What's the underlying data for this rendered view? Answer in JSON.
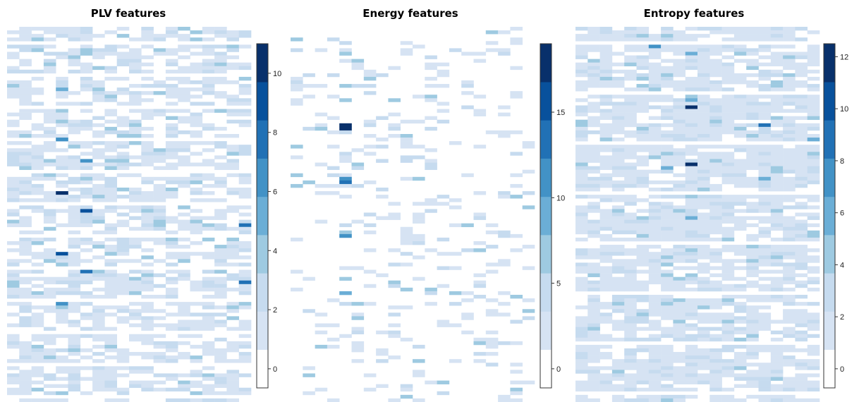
{
  "palette": [
    "#ffffff",
    "#d6e3f3",
    "#c6dbef",
    "#9ecae1",
    "#6baed6",
    "#4292c6",
    "#2171b5",
    "#08519c",
    "#08306b"
  ],
  "chart_data": [
    {
      "type": "heatmap",
      "title": "PLV features",
      "rows": 105,
      "cols": 20,
      "zlim": [
        0,
        11
      ],
      "colorbar_ticks": [
        "0",
        "2",
        "4",
        "6",
        "8",
        "10"
      ],
      "colorbar_values": [
        0,
        2,
        4,
        6,
        8,
        10
      ],
      "hotspots": [
        {
          "row": 46,
          "col": 4,
          "value": 10.5
        },
        {
          "row": 51,
          "col": 6,
          "value": 9.5
        },
        {
          "row": 63,
          "col": 4,
          "value": 10.0
        },
        {
          "row": 68,
          "col": 6,
          "value": 8.5
        },
        {
          "row": 71,
          "col": 19,
          "value": 8.5
        },
        {
          "row": 55,
          "col": 19,
          "value": 8.0
        },
        {
          "row": 31,
          "col": 4,
          "value": 7.0
        },
        {
          "row": 37,
          "col": 6,
          "value": 7.0
        },
        {
          "row": 77,
          "col": 4,
          "value": 7.0
        },
        {
          "row": 17,
          "col": 4,
          "value": 6.0
        }
      ]
    },
    {
      "type": "heatmap",
      "title": "Energy features",
      "rows": 105,
      "cols": 20,
      "zlim": [
        0,
        19
      ],
      "colorbar_ticks": [
        "0",
        "5",
        "10",
        "15"
      ],
      "colorbar_values": [
        0,
        5,
        10,
        15
      ],
      "hotspots": [
        {
          "row": 27,
          "col": 4,
          "value": 19.0
        },
        {
          "row": 28,
          "col": 4,
          "value": 19.0
        },
        {
          "row": 43,
          "col": 4,
          "value": 14.0
        },
        {
          "row": 42,
          "col": 4,
          "value": 11.0
        },
        {
          "row": 58,
          "col": 4,
          "value": 12.0
        },
        {
          "row": 57,
          "col": 4,
          "value": 8.0
        },
        {
          "row": 74,
          "col": 4,
          "value": 9.0
        },
        {
          "row": 16,
          "col": 4,
          "value": 7.0
        },
        {
          "row": 30,
          "col": 9,
          "value": 6.0
        }
      ]
    },
    {
      "type": "heatmap",
      "title": "Entropy features",
      "rows": 105,
      "cols": 20,
      "zlim": [
        0,
        12.5
      ],
      "colorbar_ticks": [
        "0",
        "2",
        "4",
        "6",
        "8",
        "10",
        "12"
      ],
      "colorbar_values": [
        0,
        2,
        4,
        6,
        8,
        10,
        12
      ],
      "hotspots": [
        {
          "row": 22,
          "col": 9,
          "value": 12.5
        },
        {
          "row": 38,
          "col": 9,
          "value": 12.0
        },
        {
          "row": 27,
          "col": 15,
          "value": 9.0
        },
        {
          "row": 5,
          "col": 6,
          "value": 8.0
        },
        {
          "row": 7,
          "col": 9,
          "value": 7.0
        },
        {
          "row": 20,
          "col": 9,
          "value": 7.0
        },
        {
          "row": 39,
          "col": 7,
          "value": 7.0
        },
        {
          "row": 42,
          "col": 15,
          "value": 7.0
        },
        {
          "row": 53,
          "col": 9,
          "value": 6.0
        },
        {
          "row": 31,
          "col": 19,
          "value": 6.0
        }
      ]
    }
  ]
}
